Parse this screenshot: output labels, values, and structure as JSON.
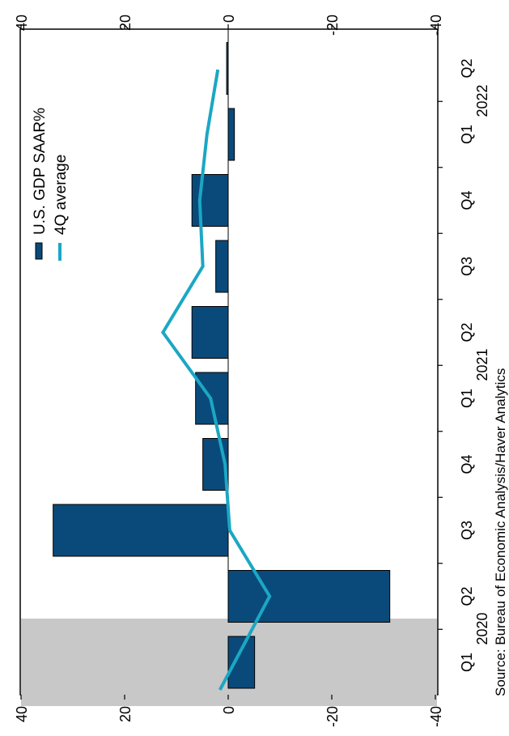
{
  "chart_data": {
    "type": "bar",
    "orientation": "rotated-90",
    "categories": [
      "Q1",
      "Q2",
      "Q3",
      "Q4",
      "Q1",
      "Q2",
      "Q3",
      "Q4",
      "Q1",
      "Q2"
    ],
    "years": [
      {
        "label": "2020",
        "category_index": 1
      },
      {
        "label": "2021",
        "category_index": 5
      },
      {
        "label": "2022",
        "category_index": 9
      }
    ],
    "series": [
      {
        "name": "U.S. GDP SAAR%",
        "type": "bar",
        "color": "#0a4a7a",
        "values": [
          -5.1,
          -31.2,
          33.8,
          4.9,
          6.3,
          7.0,
          2.4,
          7.0,
          -1.2,
          0.3
        ]
      },
      {
        "name": "4Q average",
        "type": "line",
        "color": "#1ba7c4",
        "values": [
          1.6,
          -8.0,
          -0.3,
          0.6,
          3.4,
          12.6,
          4.9,
          5.5,
          4.1,
          2.0
        ]
      }
    ],
    "ylim": [
      -40,
      40
    ],
    "yticks": [
      "40",
      "20",
      "0",
      "-20",
      "-40"
    ],
    "recession_shading": {
      "category_index": 0,
      "description": "shaded recession band"
    },
    "legend_position": "top",
    "grid": false
  },
  "source_note": "Source:  Bureau of Economic Analysis/Haver Analytics"
}
